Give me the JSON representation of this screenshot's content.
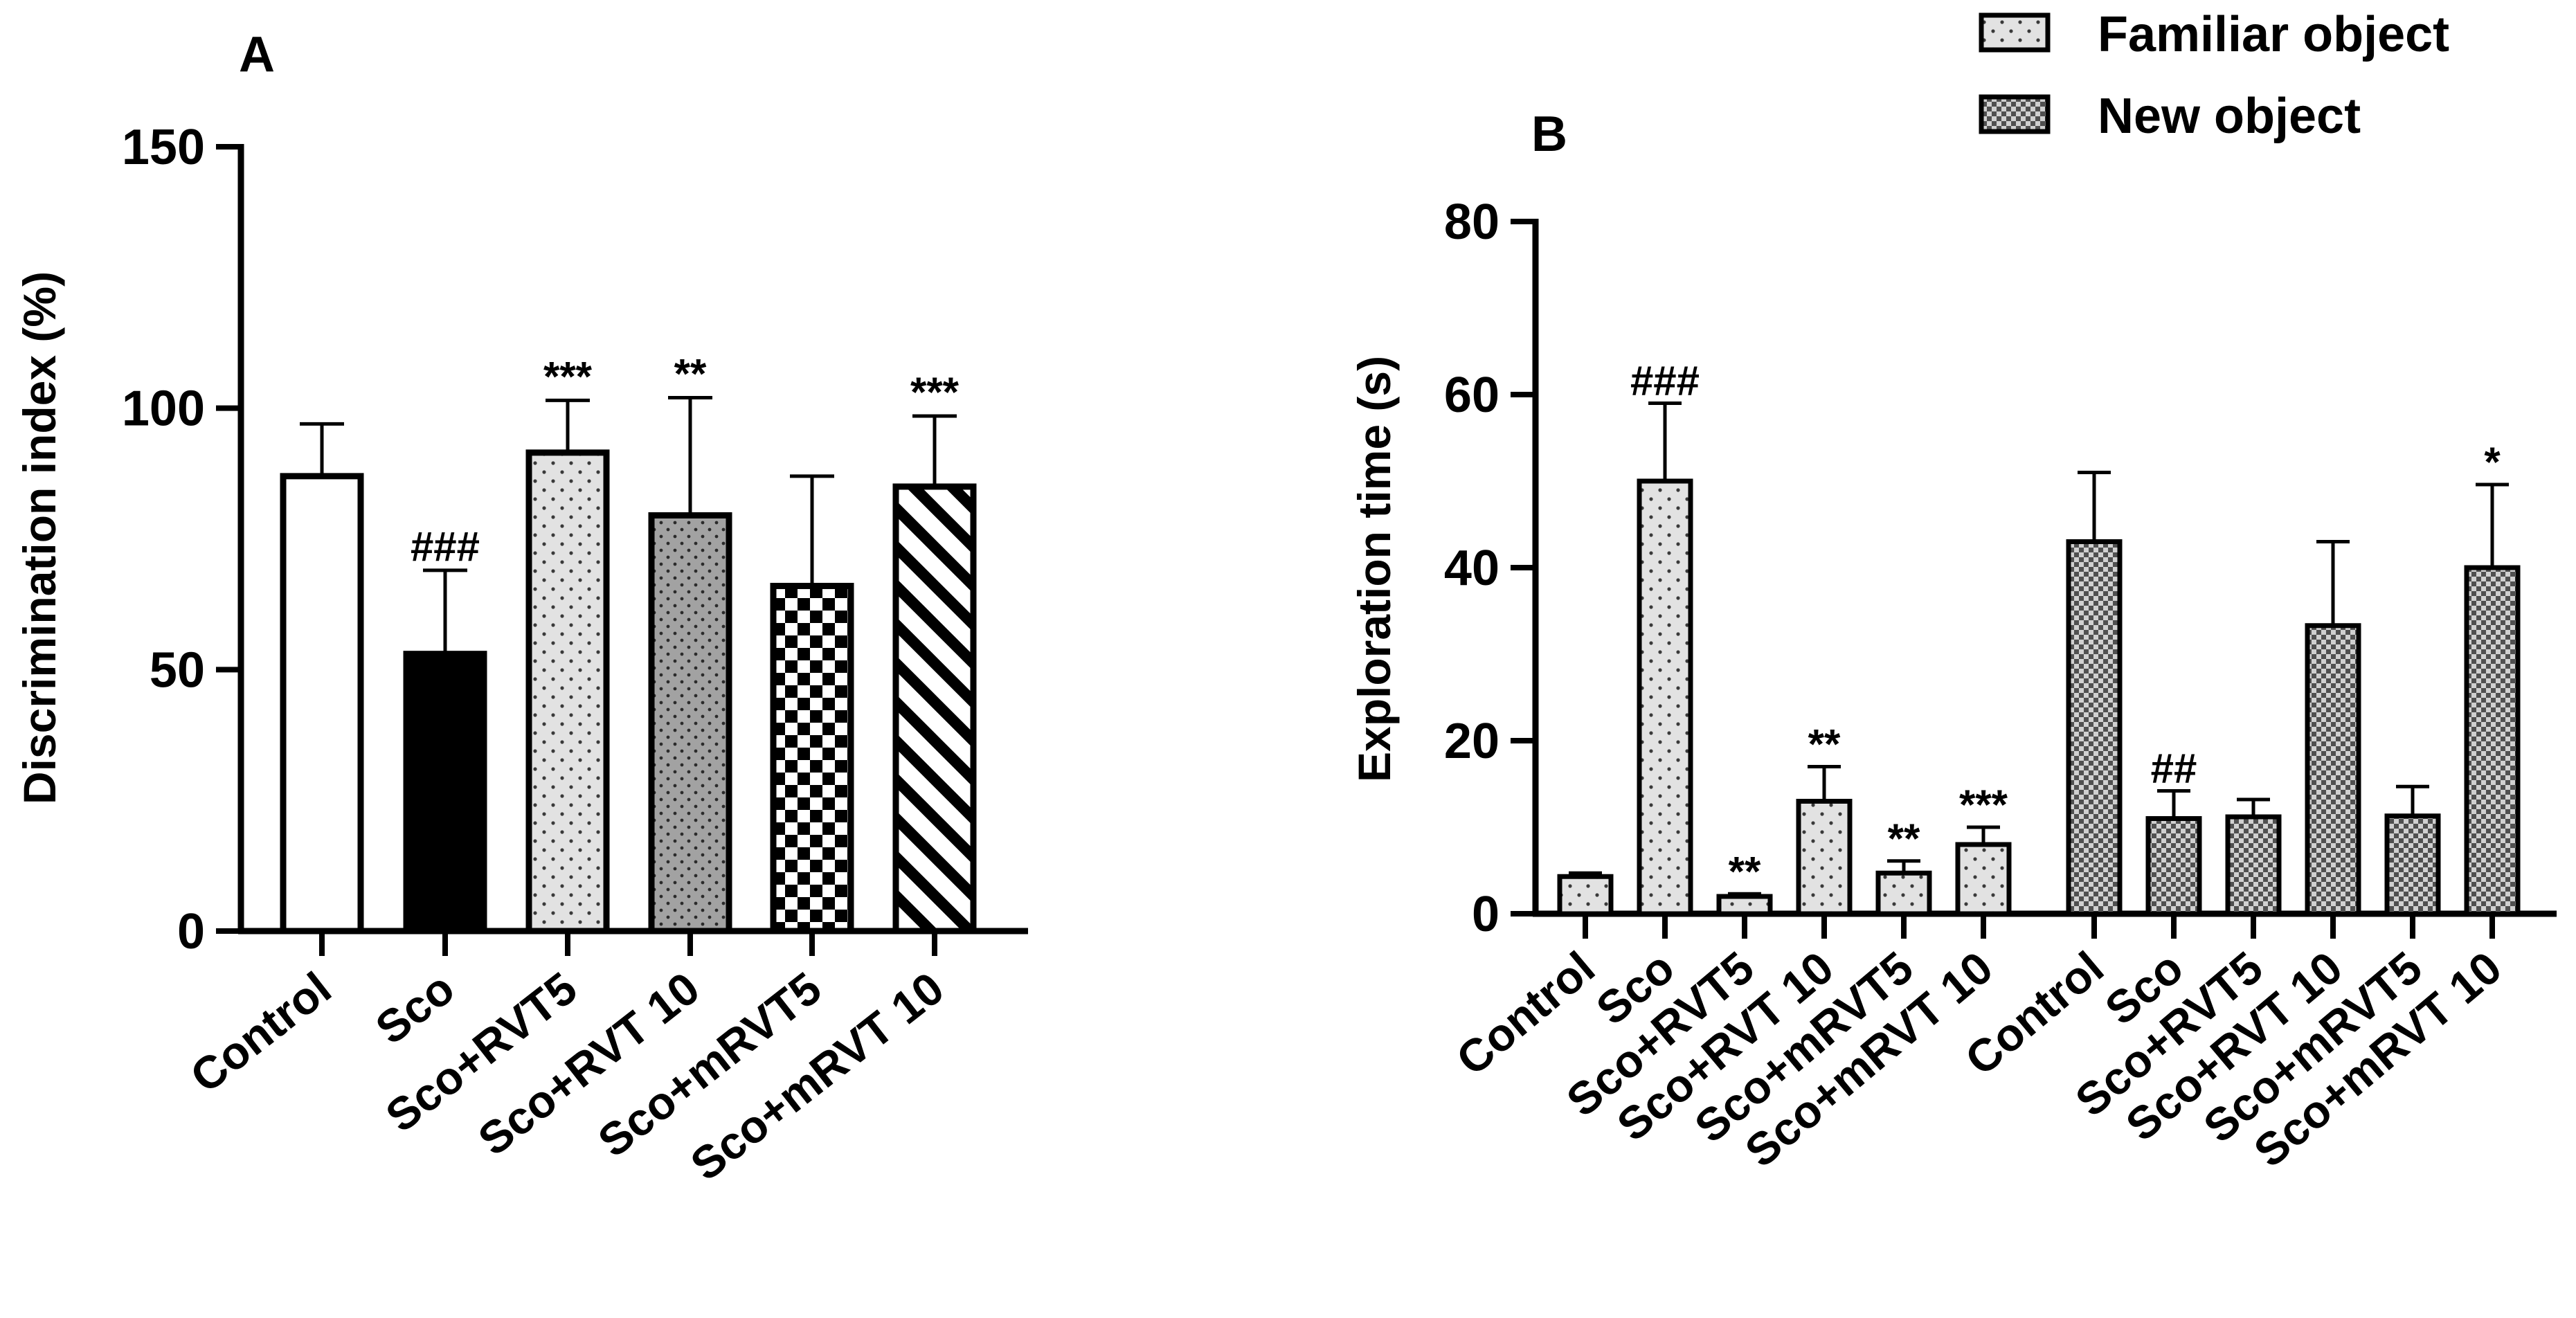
{
  "chart_data": [
    {
      "panel": "A",
      "type": "bar",
      "ylabel": "Discrimination index (%)",
      "xlabel": "",
      "ylim": [
        0,
        150
      ],
      "yticks": [
        0,
        50,
        100,
        150
      ],
      "categories": [
        "Control",
        "Sco",
        "Sco+RVT5",
        "Sco+RVT 10",
        "Sco+mRVT5",
        "Sco+mRVT 10"
      ],
      "values": [
        87,
        53,
        91.5,
        79.5,
        66,
        85
      ],
      "errors": [
        10,
        16,
        10,
        22.5,
        21,
        13.5
      ],
      "patterns": [
        "open",
        "solid",
        "dots",
        "dense-dots",
        "checker",
        "diagonal"
      ],
      "annotations": [
        "",
        "###",
        "***",
        "**",
        "",
        "***"
      ]
    },
    {
      "panel": "B",
      "type": "bar",
      "ylabel": "Exploration time (s)",
      "xlabel": "",
      "ylim": [
        0,
        80
      ],
      "yticks": [
        0,
        20,
        40,
        60,
        80
      ],
      "categories": [
        "Control",
        "Sco",
        "Sco+RVT5",
        "Sco+RVT 10",
        "Sco+mRVT5",
        "Sco+mRVT 10"
      ],
      "legend": [
        "Familiar object",
        "New object"
      ],
      "legend_position": "top-right",
      "series": [
        {
          "name": "Familiar object",
          "values": [
            4.3,
            50,
            2,
            13,
            4.7,
            8
          ],
          "errors": [
            0.4,
            9,
            0.3,
            4,
            1.4,
            2
          ],
          "annotations": [
            "",
            "###",
            "**",
            "**",
            "**",
            "***"
          ]
        },
        {
          "name": "New object",
          "values": [
            43,
            11,
            11.2,
            33.3,
            11.3,
            40
          ],
          "errors": [
            8,
            3.2,
            2,
            9.7,
            3.4,
            9.6
          ],
          "annotations": [
            "",
            "##",
            "",
            "",
            "",
            "*"
          ]
        }
      ]
    }
  ]
}
